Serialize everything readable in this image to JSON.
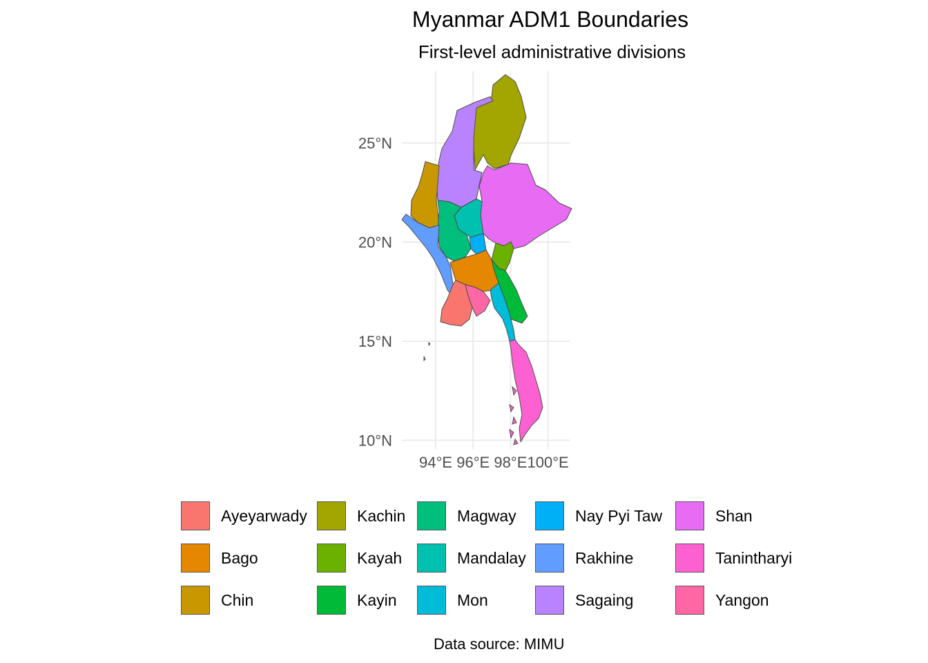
{
  "title": "Myanmar ADM1 Boundaries",
  "subtitle": "First-level administrative divisions",
  "caption": "Data source: MIMU",
  "axes": {
    "y_ticks": [
      {
        "value": 25,
        "label": "25°N"
      },
      {
        "value": 20,
        "label": "20°N"
      },
      {
        "value": 15,
        "label": "15°N"
      },
      {
        "value": 10,
        "label": "10°N"
      }
    ],
    "x_ticks": [
      {
        "value": 94,
        "label": "94°E"
      },
      {
        "value": 96,
        "label": "96°E"
      },
      {
        "value": 98,
        "label": "98°E"
      },
      {
        "value": 100,
        "label": "100°E"
      }
    ]
  },
  "style": {
    "border_color": "#4d4d4d",
    "grid_color": "#ebebeb",
    "background": "#ffffff"
  },
  "legend": {
    "items": [
      {
        "name": "Ayeyarwady",
        "color": "#F8766D"
      },
      {
        "name": "Bago",
        "color": "#E58700"
      },
      {
        "name": "Chin",
        "color": "#C99800"
      },
      {
        "name": "Kachin",
        "color": "#A3A500"
      },
      {
        "name": "Kayah",
        "color": "#6BB100"
      },
      {
        "name": "Kayin",
        "color": "#00BA38"
      },
      {
        "name": "Magway",
        "color": "#00BF7D"
      },
      {
        "name": "Mandalay",
        "color": "#00C0AF"
      },
      {
        "name": "Mon",
        "color": "#00BCD8"
      },
      {
        "name": "Nay Pyi Taw",
        "color": "#00B0F6"
      },
      {
        "name": "Rakhine",
        "color": "#619CFF"
      },
      {
        "name": "Sagaing",
        "color": "#B983FF"
      },
      {
        "name": "Shan",
        "color": "#E76BF3"
      },
      {
        "name": "Tanintharyi",
        "color": "#FD61D1"
      },
      {
        "name": "Yangon",
        "color": "#FF67A4"
      }
    ]
  }
}
